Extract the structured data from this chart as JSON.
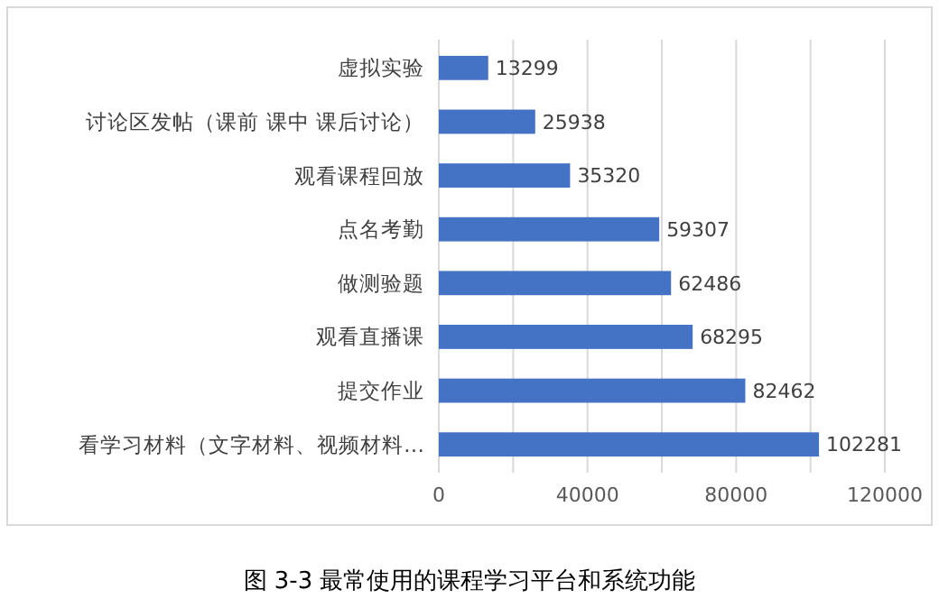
{
  "chart_data": {
    "type": "bar",
    "orientation": "horizontal",
    "categories": [
      "虚拟实验",
      "讨论区发帖（课前 课中 课后讨论）",
      "观看课程回放",
      "点名考勤",
      "做测验题",
      "观看直播课",
      "提交作业",
      "看学习材料（文字材料、视频材料…"
    ],
    "values": [
      13299,
      25938,
      35320,
      59307,
      62486,
      68295,
      82462,
      102281
    ],
    "color": "#4472c4",
    "data_labels": true,
    "xlim": [
      0,
      120000
    ],
    "xticks": [
      0,
      {
        "value": 20000,
        "label": null
      },
      40000,
      {
        "value": 60000,
        "label": null
      },
      80000,
      {
        "value": 100000,
        "label": null
      },
      120000
    ],
    "grid": "x",
    "annotations": [
      "图 3-3 最常使用的课程学习平台和系统功能"
    ]
  }
}
